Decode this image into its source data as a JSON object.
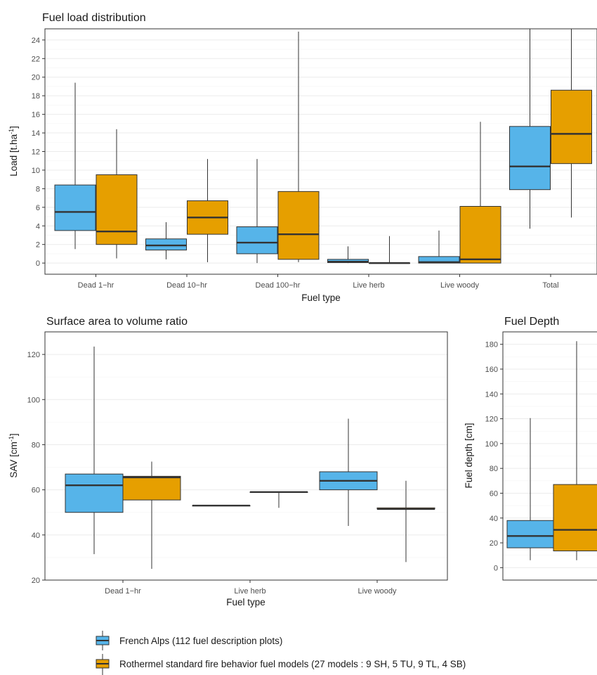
{
  "colors": {
    "french_alps": "#56B4E9",
    "rothermel": "#E69F00",
    "grid": "#ebebeb",
    "median": "#333333"
  },
  "legend": {
    "items": [
      {
        "label": "French Alps (112 fuel description plots)",
        "color": "#56B4E9"
      },
      {
        "label": "Rothermel standard fire behavior fuel models (27 models : 9 SH, 5 TU, 9 TL, 4 SB)",
        "color": "#E69F00"
      }
    ]
  },
  "chart_data": [
    {
      "type": "boxplot",
      "title": "Fuel load distribution",
      "xlabel": "Fuel type",
      "ylabel_main": "Load [t.ha",
      "ylabel_sup": "-1",
      "ylabel_end": "]",
      "ylim": [
        -1.2,
        25.2
      ],
      "yticks": [
        0,
        2,
        4,
        6,
        8,
        10,
        12,
        14,
        16,
        18,
        20,
        22,
        24
      ],
      "grid": true,
      "categories": [
        "Dead 1−hr",
        "Dead 10−hr",
        "Dead 100−hr",
        "Live herb",
        "Live woody",
        "Total"
      ],
      "series": [
        {
          "name": "French Alps (112 fuel description plots)",
          "boxes": [
            {
              "min": 1.5,
              "q1": 3.5,
              "median": 5.5,
              "q3": 8.4,
              "max": 19.4
            },
            {
              "min": 0.4,
              "q1": 1.4,
              "median": 1.9,
              "q3": 2.6,
              "max": 4.4
            },
            {
              "min": 0.0,
              "q1": 1.0,
              "median": 2.2,
              "q3": 3.9,
              "max": 11.2
            },
            {
              "min": 0.0,
              "q1": 0.05,
              "median": 0.15,
              "q3": 0.4,
              "max": 1.8
            },
            {
              "min": 0.0,
              "q1": 0.0,
              "median": 0.1,
              "q3": 0.7,
              "max": 3.5
            },
            {
              "min": 3.7,
              "q1": 7.9,
              "median": 10.4,
              "q3": 14.7,
              "max": 25.2
            }
          ]
        },
        {
          "name": "Rothermel standard fire behavior fuel models (27 models : 9 SH, 5 TU, 9 TL, 4 SB)",
          "boxes": [
            {
              "min": 0.5,
              "q1": 2.0,
              "median": 3.4,
              "q3": 9.5,
              "max": 14.4
            },
            {
              "min": 0.1,
              "q1": 3.1,
              "median": 4.9,
              "q3": 6.7,
              "max": 11.2
            },
            {
              "min": 0.1,
              "q1": 0.4,
              "median": 3.1,
              "q3": 7.7,
              "max": 24.9
            },
            {
              "min": 0.0,
              "q1": 0.0,
              "median": 0.0,
              "q3": 0.0,
              "max": 2.9
            },
            {
              "min": 0.0,
              "q1": 0.0,
              "median": 0.4,
              "q3": 6.1,
              "max": 15.2
            },
            {
              "min": 4.9,
              "q1": 10.7,
              "median": 13.9,
              "q3": 18.6,
              "max": 25.2
            }
          ]
        }
      ]
    },
    {
      "type": "boxplot",
      "title": "Surface area to volume ratio",
      "xlabel": "Fuel type",
      "ylabel_main": "SAV [cm",
      "ylabel_sup": "-1",
      "ylabel_end": "]",
      "ylim": [
        20,
        130
      ],
      "yticks": [
        20,
        40,
        60,
        80,
        100,
        120
      ],
      "grid": true,
      "categories": [
        "Dead 1−hr",
        "Live herb",
        "Live woody"
      ],
      "series": [
        {
          "name": "French Alps (112 fuel description plots)",
          "boxes": [
            {
              "min": 31.5,
              "q1": 50,
              "median": 62,
              "q3": 67,
              "max": 123.5
            },
            {
              "min": 53,
              "q1": 53,
              "median": 53,
              "q3": 53,
              "max": 53
            },
            {
              "min": 44,
              "q1": 60,
              "median": 64,
              "q3": 68,
              "max": 91.5
            }
          ]
        },
        {
          "name": "Rothermel standard fire behavior fuel models (27 models : 9 SH, 5 TU, 9 TL, 4 SB)",
          "boxes": [
            {
              "min": 25,
              "q1": 55.5,
              "median": 65.5,
              "q3": 66,
              "max": 72.5
            },
            {
              "min": 52,
              "q1": 59,
              "median": 59,
              "q3": 59,
              "max": 59
            },
            {
              "min": 28,
              "q1": 51.5,
              "median": 51.5,
              "q3": 52,
              "max": 64
            }
          ]
        }
      ]
    },
    {
      "type": "boxplot",
      "title": "Fuel Depth",
      "xlabel": "",
      "ylabel_main": "Fuel depth [cm]",
      "ylabel_sup": "",
      "ylabel_end": "",
      "ylim": [
        -10,
        190
      ],
      "yticks": [
        0,
        20,
        40,
        60,
        80,
        100,
        120,
        140,
        160,
        180
      ],
      "grid": true,
      "categories": [
        ""
      ],
      "series": [
        {
          "name": "French Alps (112 fuel description plots)",
          "boxes": [
            {
              "min": 6,
              "q1": 16,
              "median": 25.5,
              "q3": 38,
              "max": 120.5
            }
          ]
        },
        {
          "name": "Rothermel standard fire behavior fuel models (27 models : 9 SH, 5 TU, 9 TL, 4 SB)",
          "boxes": [
            {
              "min": 6,
              "q1": 13.5,
              "median": 30.5,
              "q3": 67,
              "max": 182.5
            }
          ]
        }
      ]
    }
  ]
}
